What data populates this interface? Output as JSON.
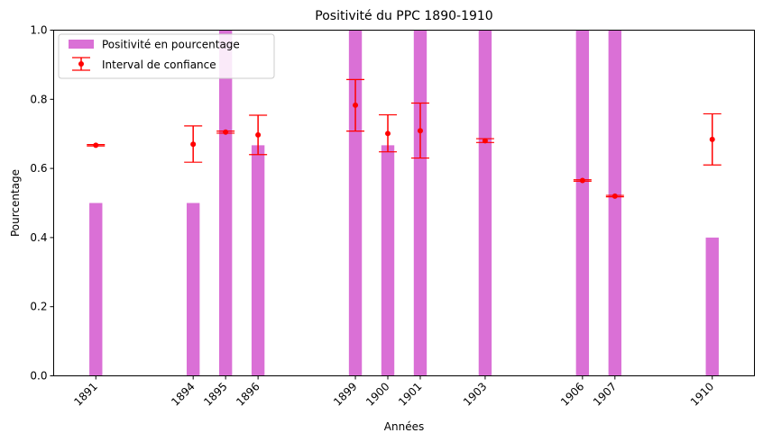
{
  "chart_data": {
    "type": "bar",
    "title": "Positivité du PPC 1890-1910",
    "xlabel": "Années",
    "ylabel": "Pourcentage",
    "xlim": [
      1889.7,
      1911.3
    ],
    "ylim": [
      0,
      1
    ],
    "yticks": [
      "0.0",
      "0.2",
      "0.4",
      "0.6",
      "0.8",
      "1.0"
    ],
    "categories": [
      "1891",
      "1894",
      "1895",
      "1896",
      "1899",
      "1900",
      "1901",
      "1903",
      "1906",
      "1907",
      "1910"
    ],
    "series": [
      {
        "name": "Positivité en pourcentage",
        "type": "bar",
        "color": "#da70d6",
        "values": [
          0.5,
          0.5,
          1.0,
          0.667,
          1.0,
          0.667,
          1.0,
          1.0,
          1.0,
          1.0,
          0.4
        ]
      },
      {
        "name": "Interval de confiance",
        "type": "errorbar",
        "color": "#ff0000",
        "values": [
          0.667,
          0.67,
          0.705,
          0.697,
          0.783,
          0.701,
          0.709,
          0.68,
          0.565,
          0.52,
          0.684
        ],
        "lower": [
          0.665,
          0.618,
          0.702,
          0.64,
          0.708,
          0.648,
          0.63,
          0.675,
          0.563,
          0.518,
          0.61
        ],
        "upper": [
          0.669,
          0.723,
          0.708,
          0.754,
          0.857,
          0.755,
          0.789,
          0.686,
          0.567,
          0.522,
          0.758
        ]
      }
    ],
    "legend": {
      "position": "top-left",
      "entries": [
        "Positivité en pourcentage",
        "Interval de confiance"
      ]
    },
    "grid": false
  }
}
